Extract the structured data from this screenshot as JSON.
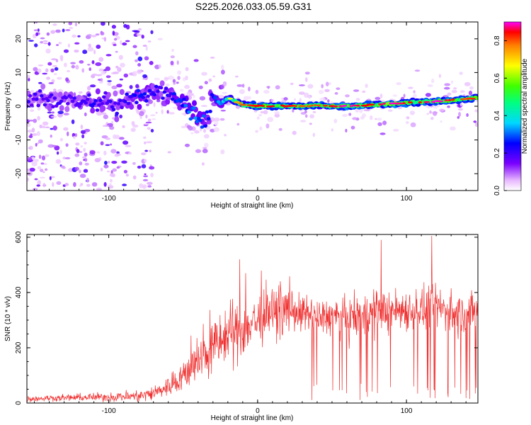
{
  "title": "S225.2026.033.05.59.G31",
  "colors": {
    "snr_line": "#f03030",
    "ridge": "#ff2a00",
    "background": "#ffffff"
  },
  "chart_data": [
    {
      "type": "heatmap",
      "title": "S225.2026.033.05.59.G31",
      "xlabel": "Height of straight line (km)",
      "ylabel": "Frequency (Hz)",
      "xlim": [
        -155,
        148
      ],
      "ylim": [
        -25,
        25
      ],
      "xticks": [
        {
          "value": -100,
          "label": "-100"
        },
        {
          "value": 0,
          "label": "0"
        },
        {
          "value": 100,
          "label": "100"
        }
      ],
      "yticks": [
        {
          "value": -20,
          "label": "-20"
        },
        {
          "value": -10,
          "label": "-10"
        },
        {
          "value": 0,
          "label": "0"
        },
        {
          "value": 10,
          "label": "10"
        },
        {
          "value": 20,
          "label": "20"
        }
      ],
      "colorbar": {
        "label": "Normalized spectral amplitude",
        "range": [
          0,
          0.9
        ],
        "ticks": [
          {
            "value": 0,
            "label": "0.0"
          },
          {
            "value": 0.2,
            "label": "0.2"
          },
          {
            "value": 0.4,
            "label": "0.4"
          },
          {
            "value": 0.6,
            "label": "0.6"
          },
          {
            "value": 0.8,
            "label": "0.8"
          }
        ]
      },
      "ridge": {
        "x": [
          -140,
          -125,
          -110,
          -95,
          -80,
          -70,
          -60,
          -50,
          -42,
          -35,
          -30,
          -25,
          -20,
          -10,
          0,
          10,
          20,
          30,
          40,
          50,
          60,
          70,
          80,
          90,
          100,
          110,
          120,
          130,
          140,
          148
        ],
        "frequency": [
          2,
          1.5,
          1,
          0.5,
          3,
          4.5,
          3,
          1,
          -3,
          -5,
          3,
          0.5,
          2.5,
          0.5,
          0,
          0.2,
          0,
          0,
          0.3,
          0,
          0,
          0.2,
          0.5,
          0.8,
          1,
          1.2,
          1.5,
          1.8,
          2.2,
          2.5
        ],
        "amplitude": [
          0.3,
          0.3,
          0.35,
          0.3,
          0.4,
          0.35,
          0.35,
          0.45,
          0.5,
          0.45,
          0.4,
          0.55,
          0.65,
          0.8,
          0.85,
          0.85,
          0.85,
          0.8,
          0.8,
          0.85,
          0.9,
          0.85,
          0.85,
          0.9,
          0.85,
          0.85,
          0.9,
          0.85,
          0.8,
          0.85
        ]
      }
    },
    {
      "type": "line",
      "xlabel": "Height of straight line (km)",
      "ylabel": "SNR (10 * v/v)",
      "xlim": [
        -155,
        148
      ],
      "ylim": [
        0,
        610
      ],
      "xticks": [
        {
          "value": -100,
          "label": "-100"
        },
        {
          "value": 0,
          "label": "0"
        },
        {
          "value": 100,
          "label": "100"
        }
      ],
      "yticks": [
        {
          "value": 0,
          "label": "0"
        },
        {
          "value": 200,
          "label": "200"
        },
        {
          "value": 400,
          "label": "400"
        },
        {
          "value": 600,
          "label": "600"
        }
      ],
      "series": [
        {
          "name": "SNR",
          "x": [
            -155,
            -140,
            -120,
            -100,
            -80,
            -70,
            -60,
            -50,
            -40,
            -30,
            -20,
            -10,
            0,
            10,
            20,
            30,
            40,
            50,
            60,
            70,
            80,
            90,
            100,
            110,
            120,
            130,
            140,
            148
          ],
          "values": [
            15,
            18,
            20,
            22,
            25,
            35,
            60,
            100,
            150,
            200,
            240,
            270,
            300,
            320,
            340,
            320,
            310,
            315,
            300,
            320,
            330,
            335,
            340,
            335,
            350,
            330,
            320,
            330
          ],
          "spread": [
            10,
            10,
            12,
            15,
            20,
            25,
            35,
            50,
            70,
            90,
            100,
            100,
            90,
            80,
            70,
            60,
            60,
            60,
            70,
            70,
            70,
            70,
            70,
            70,
            70,
            70,
            70,
            70
          ]
        }
      ],
      "annotations": [
        {
          "x": -12,
          "value": 520
        },
        {
          "x": -8,
          "value": 470
        },
        {
          "x": 83,
          "value": 590
        },
        {
          "x": 117,
          "value": 605
        }
      ]
    }
  ]
}
